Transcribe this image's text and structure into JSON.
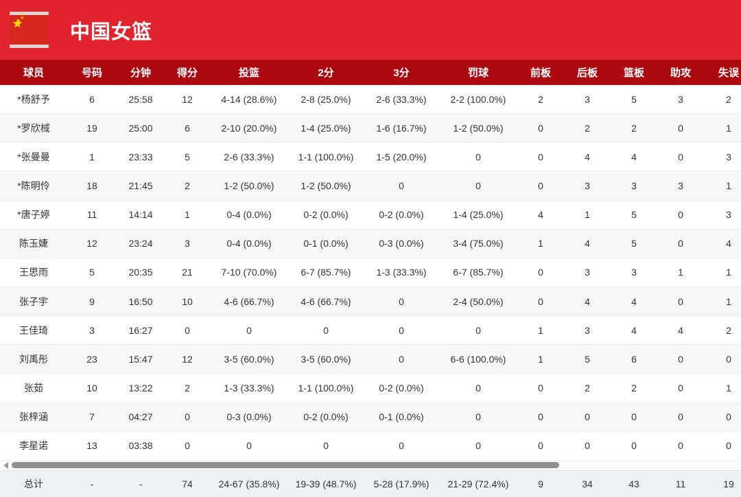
{
  "header": {
    "title": "中国女篮",
    "flag_icon": "china-flag",
    "banner_color": "#e1242e"
  },
  "table": {
    "header_bg": "#ac0911",
    "accent_red": "#e1242e",
    "columns": [
      "球员",
      "号码",
      "分钟",
      "得分",
      "投篮",
      "2分",
      "3分",
      "罚球",
      "前板",
      "后板",
      "篮板",
      "助攻",
      "失误"
    ],
    "rows": [
      [
        "*杨舒予",
        "6",
        "25:58",
        "12",
        "4-14 (28.6%)",
        "2-8 (25.0%)",
        "2-6 (33.3%)",
        "2-2 (100.0%)",
        "2",
        "3",
        "5",
        "3",
        "2"
      ],
      [
        "*罗欣棫",
        "19",
        "25:00",
        "6",
        "2-10 (20.0%)",
        "1-4 (25.0%)",
        "1-6 (16.7%)",
        "1-2 (50.0%)",
        "0",
        "2",
        "2",
        "0",
        "1"
      ],
      [
        "*张曼曼",
        "1",
        "23:33",
        "5",
        "2-6 (33.3%)",
        "1-1 (100.0%)",
        "1-5 (20.0%)",
        "0",
        "0",
        "4",
        "4",
        "0",
        "3"
      ],
      [
        "*陈明伶",
        "18",
        "21:45",
        "2",
        "1-2 (50.0%)",
        "1-2 (50.0%)",
        "0",
        "0",
        "0",
        "3",
        "3",
        "3",
        "1"
      ],
      [
        "*唐子婷",
        "11",
        "14:14",
        "1",
        "0-4 (0.0%)",
        "0-2 (0.0%)",
        "0-2 (0.0%)",
        "1-4 (25.0%)",
        "4",
        "1",
        "5",
        "0",
        "3"
      ],
      [
        "陈玉婕",
        "12",
        "23:24",
        "3",
        "0-4 (0.0%)",
        "0-1 (0.0%)",
        "0-3 (0.0%)",
        "3-4 (75.0%)",
        "1",
        "4",
        "5",
        "0",
        "4"
      ],
      [
        "王思雨",
        "5",
        "20:35",
        "21",
        "7-10 (70.0%)",
        "6-7 (85.7%)",
        "1-3 (33.3%)",
        "6-7 (85.7%)",
        "0",
        "3",
        "3",
        "1",
        "1"
      ],
      [
        "张子宇",
        "9",
        "16:50",
        "10",
        "4-6 (66.7%)",
        "4-6 (66.7%)",
        "0",
        "2-4 (50.0%)",
        "0",
        "4",
        "4",
        "0",
        "1"
      ],
      [
        "王佳琦",
        "3",
        "16:27",
        "0",
        "0",
        "0",
        "0",
        "0",
        "1",
        "3",
        "4",
        "4",
        "2"
      ],
      [
        "刘禹彤",
        "23",
        "15:47",
        "12",
        "3-5 (60.0%)",
        "3-5 (60.0%)",
        "0",
        "6-6 (100.0%)",
        "1",
        "5",
        "6",
        "0",
        "0"
      ],
      [
        "张茹",
        "10",
        "13:22",
        "2",
        "1-3 (33.3%)",
        "1-1 (100.0%)",
        "0-2 (0.0%)",
        "0",
        "0",
        "2",
        "2",
        "0",
        "1"
      ],
      [
        "张梓涵",
        "7",
        "04:27",
        "0",
        "0-3 (0.0%)",
        "0-2 (0.0%)",
        "0-1 (0.0%)",
        "0",
        "0",
        "0",
        "0",
        "0",
        "0"
      ],
      [
        "李星诺",
        "13",
        "03:38",
        "0",
        "0",
        "0",
        "0",
        "0",
        "0",
        "0",
        "0",
        "0",
        "0"
      ]
    ],
    "total": [
      "总计",
      "-",
      "-",
      "74",
      "24-67 (35.8%)",
      "19-39 (48.7%)",
      "5-28 (17.9%)",
      "21-29 (72.4%)",
      "9",
      "34",
      "43",
      "11",
      "19"
    ]
  },
  "scrollbar": {
    "orientation": "horizontal",
    "left_arrow": "scroll-left"
  }
}
